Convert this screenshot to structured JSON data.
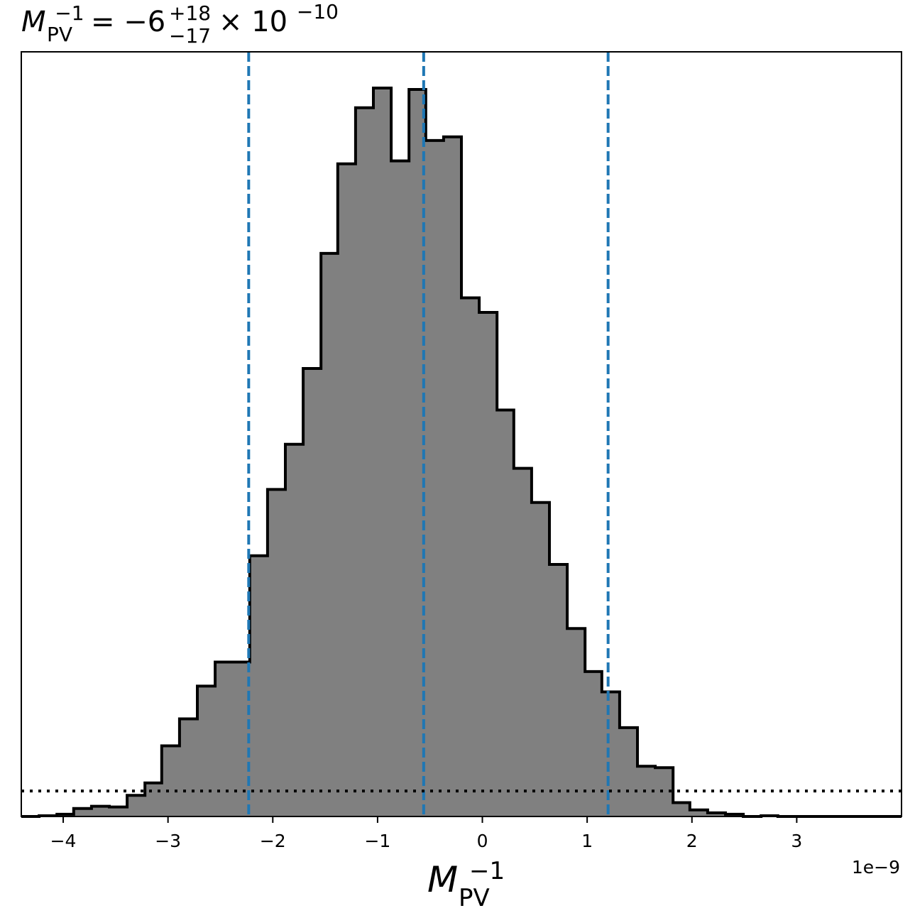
{
  "chart_data": {
    "type": "histogram",
    "title": {
      "symbol": "M",
      "symbol_sup": "−1",
      "symbol_sub": "PV",
      "equals": "= −6",
      "err_plus": "+18",
      "err_minus": "−17",
      "times": "× 10",
      "exponent": "−10"
    },
    "xlabel": {
      "symbol": "M",
      "sup": "−1",
      "sub": "PV"
    },
    "x_offset_label": "1e−9",
    "xlim": [
      -4.4e-09,
      4e-09
    ],
    "ylim": [
      0,
      1.0
    ],
    "y_ticks_visible": false,
    "x_ticks": [
      {
        "value": -4e-09,
        "label": "−4"
      },
      {
        "value": -3e-09,
        "label": "−3"
      },
      {
        "value": -2e-09,
        "label": "−2"
      },
      {
        "value": -1e-09,
        "label": "−1"
      },
      {
        "value": 0,
        "label": "0"
      },
      {
        "value": 1e-09,
        "label": "1"
      },
      {
        "value": 2e-09,
        "label": "2"
      },
      {
        "value": 3e-09,
        "label": "3"
      }
    ],
    "bin_edges": [
      -4.4e-09,
      -4.23e-09,
      -4.06e-09,
      -3.9e-09,
      -3.73e-09,
      -3.56e-09,
      -3.39e-09,
      -3.22e-09,
      -3.06e-09,
      -2.89e-09,
      -2.72e-09,
      -2.55e-09,
      -2.38e-09,
      -2.22e-09,
      -2.05e-09,
      -1.88e-09,
      -1.71e-09,
      -1.54e-09,
      -1.38e-09,
      -1.21e-09,
      -1.04e-09,
      -8.7e-10,
      -7e-10,
      -5.4e-10,
      -3.7e-10,
      -2e-10,
      -3e-11,
      1.4e-10,
      3e-10,
      4.7e-10,
      6.4e-10,
      8.1e-10,
      9.8e-10,
      1.14e-09,
      1.31e-09,
      1.48e-09,
      1.65e-09,
      1.82e-09,
      1.98e-09,
      2.15e-09,
      2.32e-09,
      2.49e-09,
      2.66e-09,
      2.82e-09,
      2.99e-09,
      3.16e-09,
      3.33e-09,
      3.5e-09,
      3.66e-09,
      3.83e-09,
      4e-09
    ],
    "counts": [
      0.0,
      0.001,
      0.003,
      0.011,
      0.014,
      0.013,
      0.029,
      0.046,
      0.097,
      0.134,
      0.179,
      0.212,
      0.212,
      0.358,
      0.449,
      0.511,
      0.615,
      0.773,
      0.896,
      0.973,
      1.0,
      0.9,
      0.998,
      0.928,
      0.933,
      0.712,
      0.692,
      0.558,
      0.478,
      0.431,
      0.346,
      0.258,
      0.199,
      0.171,
      0.122,
      0.069,
      0.067,
      0.019,
      0.009,
      0.005,
      0.003,
      0.0,
      0.001,
      0.0,
      0.0,
      0.0,
      0.0,
      0.0,
      0.0,
      0.0
    ],
    "fill_color": "#808080",
    "edge_color": "#000000",
    "quantile_lines": {
      "values": [
        -2.23e-09,
        -5.6e-10,
        1.2e-09
      ],
      "color": "#1f77b4",
      "style": "dashed"
    },
    "reference_line": {
      "value": 0.035,
      "color": "#000000",
      "style": "dotted"
    }
  }
}
